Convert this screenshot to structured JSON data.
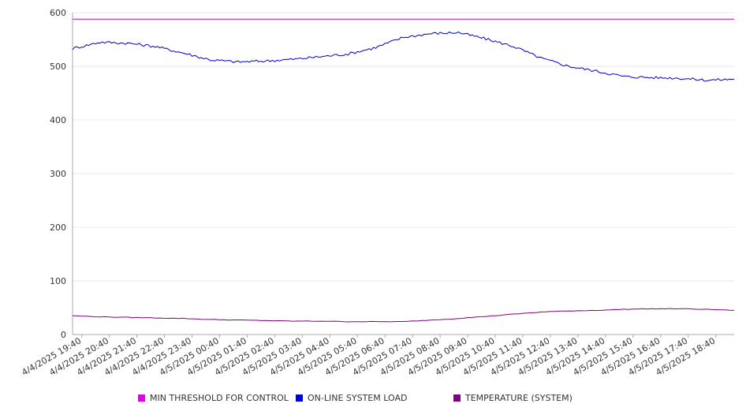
{
  "chart_data": {
    "type": "line",
    "title": "",
    "xlabel": "",
    "ylabel": "",
    "ylim": [
      0,
      600
    ],
    "yticks": [
      0,
      100,
      200,
      300,
      400,
      500,
      600
    ],
    "grid": "horizontal",
    "legend_position": "bottom",
    "xtick_labels": [
      "4/4/2025 19:40",
      "4/4/2025 20:40",
      "4/4/2025 21:40",
      "4/4/2025 22:40",
      "4/4/2025 23:40",
      "4/5/2025 00:40",
      "4/5/2025 01:40",
      "4/5/2025 02:40",
      "4/5/2025 03:40",
      "4/5/2025 04:40",
      "4/5/2025 05:40",
      "4/5/2025 06:40",
      "4/5/2025 07:40",
      "4/5/2025 08:40",
      "4/5/2025 09:40",
      "4/5/2025 10:40",
      "4/5/2025 11:40",
      "4/5/2025 12:40",
      "4/5/2025 13:40",
      "4/5/2025 14:40",
      "4/5/2025 15:40",
      "4/5/2025 16:40",
      "4/5/2025 17:40",
      "4/5/2025 18:40"
    ],
    "x": [
      "4/4/2025 19:20",
      "4/4/2025 20:20",
      "4/4/2025 21:20",
      "4/4/2025 22:20",
      "4/4/2025 23:20",
      "4/5/2025 00:20",
      "4/5/2025 01:20",
      "4/5/2025 02:20",
      "4/5/2025 03:20",
      "4/5/2025 04:20",
      "4/5/2025 05:20",
      "4/5/2025 06:20",
      "4/5/2025 07:20",
      "4/5/2025 08:20",
      "4/5/2025 09:20",
      "4/5/2025 10:20",
      "4/5/2025 11:20",
      "4/5/2025 12:20",
      "4/5/2025 13:20",
      "4/5/2025 14:20",
      "4/5/2025 15:20",
      "4/5/2025 16:20",
      "4/5/2025 17:20",
      "4/5/2025 18:20",
      "4/5/2025 19:20"
    ],
    "series": [
      {
        "name": "MIN THRESHOLD FOR CONTROL",
        "color": "#cc00cc",
        "values": [
          588,
          588,
          588,
          588,
          588,
          588,
          588,
          588,
          588,
          588,
          588,
          588,
          588,
          588,
          588,
          588,
          588,
          588,
          588,
          588,
          588,
          588,
          588,
          588,
          588
        ]
      },
      {
        "name": "ON-LINE SYSTEM LOAD",
        "color": "#0000cc",
        "values": [
          533,
          545,
          543,
          537,
          525,
          512,
          508,
          510,
          513,
          518,
          523,
          535,
          554,
          561,
          563,
          551,
          537,
          515,
          500,
          491,
          481,
          479,
          478,
          474,
          476
        ]
      },
      {
        "name": "TEMPERATURE (SYSTEM)",
        "color": "#800080",
        "values": [
          35,
          33,
          32,
          31,
          30,
          28,
          27,
          26,
          25,
          25,
          24,
          24,
          24,
          27,
          30,
          34,
          38,
          42,
          44,
          45,
          47,
          48,
          48,
          47,
          45
        ]
      }
    ]
  }
}
